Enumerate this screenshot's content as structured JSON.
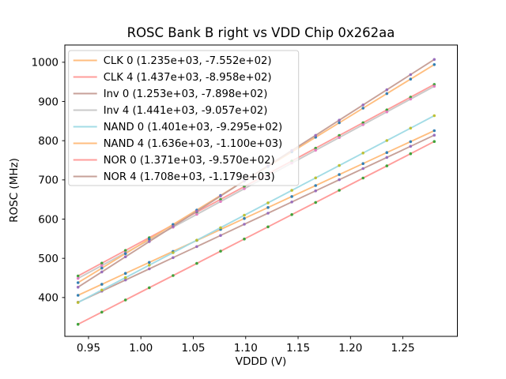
{
  "window": {
    "background": "#ffffff"
  },
  "chart_data": {
    "type": "scatter",
    "title": "ROSC Bank B right vs VDD Chip 0x262aa",
    "xlabel": "VDDD (V)",
    "ylabel": "ROSC (MHz)",
    "xlim": [
      0.9274,
      1.302
    ],
    "ylim": [
      301,
      1044
    ],
    "xtick_labels": [
      "0.95",
      "1.00",
      "1.05",
      "1.10",
      "1.15",
      "1.20",
      "1.25"
    ],
    "xtick_values": [
      0.95,
      1.0,
      1.05,
      1.1,
      1.15,
      1.2,
      1.25
    ],
    "ytick_values": [
      400,
      500,
      600,
      700,
      800,
      900,
      1000
    ],
    "grid": false,
    "legend_position": "upper left",
    "x_values": [
      0.94,
      0.9627,
      0.9853,
      1.008,
      1.0307,
      1.0533,
      1.076,
      1.0987,
      1.1213,
      1.144,
      1.1667,
      1.1893,
      1.212,
      1.2347,
      1.2573,
      1.28
    ],
    "series": [
      {
        "name": "CLK 0",
        "label": "CLK 0 (1.235e+03, -7.552e+02)",
        "slope": 1235,
        "intercept": -755.2,
        "line_color": "#ffbb78",
        "marker_color": "#1f77b4"
      },
      {
        "name": "CLK 4",
        "label": "CLK 4 (1.437e+03, -8.958e+02)",
        "slope": 1437,
        "intercept": -895.8,
        "line_color": "#ff9896",
        "marker_color": "#2ca02c"
      },
      {
        "name": "Inv 0",
        "label": "Inv 0 (1.253e+03, -7.898e+02)",
        "slope": 1253,
        "intercept": -789.8,
        "line_color": "#c49c94",
        "marker_color": "#9467bd"
      },
      {
        "name": "Inv 4",
        "label": "Inv 4 (1.441e+03, -9.057e+02)",
        "slope": 1441,
        "intercept": -905.7,
        "line_color": "#c7c7c7",
        "marker_color": "#e377c2"
      },
      {
        "name": "NAND 0",
        "label": "NAND 0 (1.401e+03, -9.295e+02)",
        "slope": 1401,
        "intercept": -929.5,
        "line_color": "#9edae5",
        "marker_color": "#bcbd22"
      },
      {
        "name": "NAND 4",
        "label": "NAND 4 (1.636e+03, -1.100e+03)",
        "slope": 1636,
        "intercept": -1100,
        "line_color": "#ffbb78",
        "marker_color": "#1f77b4"
      },
      {
        "name": "NOR 0",
        "label": "NOR 0 (1.371e+03, -9.570e+02)",
        "slope": 1371,
        "intercept": -957.0,
        "line_color": "#ff9896",
        "marker_color": "#2ca02c"
      },
      {
        "name": "NOR 4",
        "label": "NOR 4 (1.708e+03, -1.179e+03)",
        "slope": 1708,
        "intercept": -1179,
        "line_color": "#c49c94",
        "marker_color": "#9467bd"
      }
    ]
  }
}
